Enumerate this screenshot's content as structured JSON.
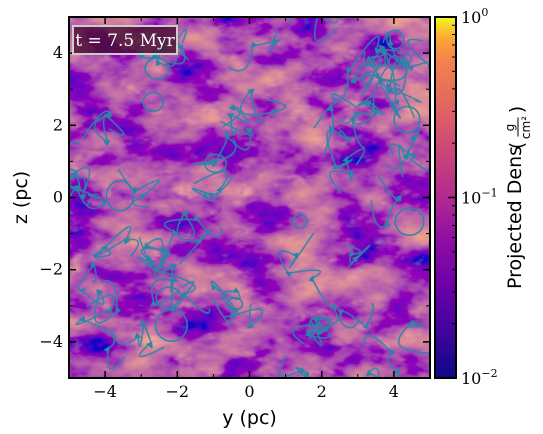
{
  "chart_data": {
    "type": "heatmap",
    "title": "",
    "xlabel": "y  (pc)",
    "ylabel": "z  (pc)",
    "xlim": [
      -5,
      5
    ],
    "ylim": [
      -5,
      5
    ],
    "x_ticks": [
      -4,
      -2,
      0,
      2,
      4
    ],
    "y_ticks": [
      -4,
      -2,
      0,
      2,
      4
    ],
    "x_tick_labels": [
      "−4",
      "−2",
      "0",
      "2",
      "4"
    ],
    "y_tick_labels": [
      "−4",
      "−2",
      "0",
      "2",
      "4"
    ],
    "annotation": "t = 7.5 Myr",
    "overlay": "streamlines",
    "streamline_color": "#2a86a8",
    "colormap": "plasma",
    "colorbar": {
      "label": "Projected Dens",
      "unit_numerator": "g",
      "unit_denominator": "cm²",
      "scale": "log",
      "range": [
        0.01,
        1
      ],
      "ticks": [
        {
          "value": 1,
          "base": "10",
          "exp": "0"
        },
        {
          "value": 0.1,
          "base": "10",
          "exp": "−1"
        },
        {
          "value": 0.01,
          "base": "10",
          "exp": "−2"
        }
      ]
    }
  }
}
